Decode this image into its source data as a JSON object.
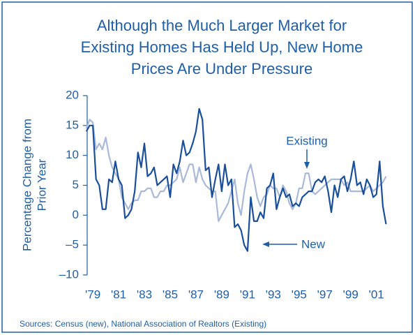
{
  "chart_data": {
    "type": "line",
    "title": [
      "Although the Much Larger Market for",
      "Existing Homes Has Held Up, New Home",
      "Prices Are Under Pressure"
    ],
    "y_label": [
      "Percentage Change from",
      "Prior Year"
    ],
    "source": "Sources: Census (new), National Association of Realtors (Existing)",
    "x": [
      1978.5,
      1978.75,
      1979,
      1979.25,
      1979.5,
      1979.75,
      1980,
      1980.25,
      1980.5,
      1980.75,
      1981,
      1981.25,
      1981.5,
      1981.75,
      1982,
      1982.25,
      1982.5,
      1982.75,
      1983,
      1983.25,
      1983.5,
      1983.75,
      1984,
      1984.25,
      1984.5,
      1984.75,
      1985,
      1985.25,
      1985.5,
      1985.75,
      1986,
      1986.25,
      1986.5,
      1986.75,
      1987,
      1987.25,
      1987.5,
      1987.75,
      1988,
      1988.25,
      1988.5,
      1988.75,
      1989,
      1989.25,
      1989.5,
      1989.75,
      1990,
      1990.25,
      1990.5,
      1990.75,
      1991,
      1991.25,
      1991.5,
      1991.75,
      1992,
      1992.25,
      1992.5,
      1992.75,
      1993,
      1993.25,
      1993.5,
      1993.75,
      1994,
      1994.25,
      1994.5,
      1994.75,
      1995,
      1995.25,
      1995.5,
      1995.75,
      1996,
      1996.25,
      1996.5,
      1996.75,
      1997,
      1997.25,
      1997.5,
      1997.75,
      1998,
      1998.25,
      1998.5,
      1998.75,
      1999,
      1999.25,
      1999.5,
      1999.75,
      2000,
      2000.25,
      2000.5,
      2000.75,
      2001,
      2001.25,
      2001.5,
      2001.75
    ],
    "series": [
      {
        "name": "Existing",
        "color": "#a9b9da",
        "values": [
          14.5,
          16,
          15.5,
          11,
          12,
          11,
          13,
          10,
          8,
          7,
          6,
          3,
          2,
          1,
          2,
          2.5,
          2.5,
          4,
          4,
          4.5,
          4.5,
          3,
          3,
          4,
          4,
          5,
          5,
          5.5,
          6,
          8,
          5.5,
          7,
          8.5,
          8.5,
          5.5,
          8,
          6,
          5,
          4.5,
          4,
          4,
          -1,
          0,
          1,
          2,
          4,
          6,
          2,
          0,
          4,
          7,
          8.5,
          6,
          3,
          1.5,
          3,
          3.5,
          5,
          4.5,
          4.5,
          3,
          5,
          4,
          2,
          1,
          2,
          4.5,
          4.5,
          7,
          7,
          4,
          3.5,
          4,
          4.5,
          5,
          5.5,
          6,
          6,
          6,
          6,
          5,
          5.5,
          4,
          4,
          4,
          4,
          4,
          4.5,
          5,
          4,
          4.5,
          5,
          5.5,
          6.5
        ]
      },
      {
        "name": "New",
        "color": "#1a4f9c",
        "values": [
          14,
          15,
          15,
          6,
          5,
          1,
          1,
          6,
          5.5,
          9,
          6,
          5,
          -0.5,
          0,
          1,
          4,
          10.5,
          8,
          12,
          6.5,
          7,
          8,
          5,
          5.5,
          6,
          6.5,
          3,
          8.5,
          7,
          9,
          12.5,
          10,
          10.5,
          12,
          14,
          17.8,
          16,
          7.5,
          8,
          3,
          6,
          8.5,
          4,
          8.5,
          5,
          6,
          -2,
          -1.5,
          -2.5,
          -5,
          -6,
          3,
          -1,
          -1,
          0.5,
          -0.5,
          4.5,
          5,
          7,
          1,
          3,
          4.5,
          3,
          3.5,
          1.5,
          2,
          1.5,
          3,
          3.5,
          4,
          4,
          5.5,
          6,
          5.5,
          6.5,
          4,
          0.5,
          5,
          3,
          6,
          6.5,
          4,
          6,
          9,
          5,
          5.5,
          3.5,
          6,
          5,
          3,
          3.5,
          9,
          1.5,
          -1.5
        ]
      }
    ],
    "xlim": [
      1978.4,
      2002.1
    ],
    "xticks": [
      {
        "value": 1979,
        "label": "'79"
      },
      {
        "value": 1981,
        "label": "'81"
      },
      {
        "value": 1983,
        "label": "'83"
      },
      {
        "value": 1985,
        "label": "'85"
      },
      {
        "value": 1987,
        "label": "'87"
      },
      {
        "value": 1989,
        "label": "'89"
      },
      {
        "value": 1991,
        "label": "'91"
      },
      {
        "value": 1993,
        "label": "'93"
      },
      {
        "value": 1995,
        "label": "'95"
      },
      {
        "value": 1997,
        "label": "'97"
      },
      {
        "value": 1999,
        "label": "'99"
      },
      {
        "value": 2001,
        "label": "'01"
      }
    ],
    "ylim": [
      -10,
      20
    ],
    "yticks": [
      20,
      15,
      10,
      5,
      0,
      {
        "value": -5,
        "label": "–5"
      },
      {
        "value": -10,
        "label": "–10"
      }
    ],
    "grid": false
  }
}
